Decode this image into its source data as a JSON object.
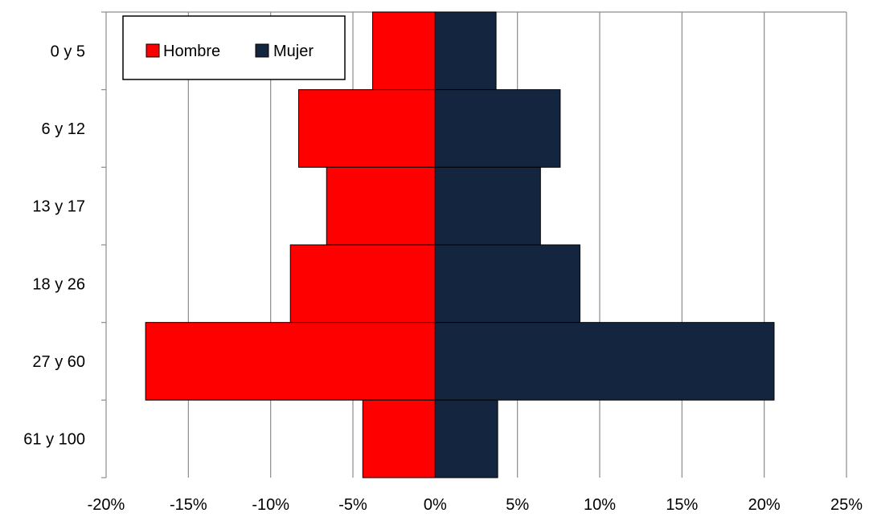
{
  "chart_data": {
    "type": "bar",
    "orientation": "horizontal",
    "stacked": true,
    "categories": [
      "0 y 5",
      "6 y 12",
      "13 y 17",
      "18 y 26",
      "27 y 60",
      "61 y 100"
    ],
    "series": [
      {
        "name": "Hombre",
        "color": "#ff0000",
        "values": [
          -3.8,
          -8.3,
          -6.6,
          -8.8,
          -17.6,
          -4.4
        ]
      },
      {
        "name": "Mujer",
        "color": "#14263f",
        "values": [
          3.7,
          7.6,
          6.4,
          8.8,
          20.6,
          3.8
        ]
      }
    ],
    "xlim": [
      -20,
      25
    ],
    "xticks": [
      "-20%",
      "-15%",
      "-10%",
      "-5%",
      "0%",
      "5%",
      "10%",
      "15%",
      "20%",
      "25%"
    ],
    "grid": "vertical",
    "legend_position": "top-left",
    "title": "",
    "xlabel": "",
    "ylabel": ""
  }
}
